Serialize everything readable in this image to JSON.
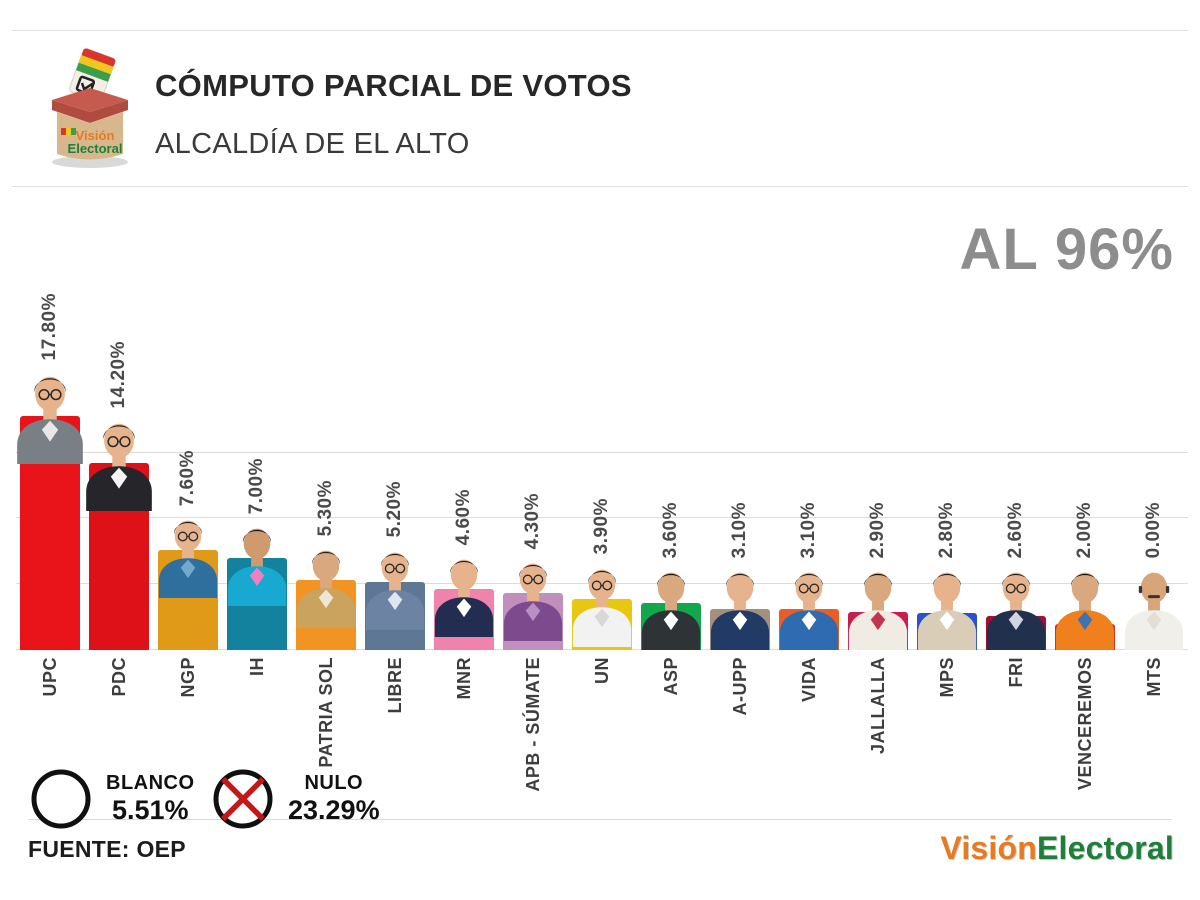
{
  "header": {
    "title": "CÓMPUTO PARCIAL DE VOTOS",
    "subtitle": "ALCALDÍA DE EL ALTO",
    "logo": {
      "icon": "ballot-box-icon",
      "line1": "Visión",
      "line2": "Electoral"
    }
  },
  "counted_label": "AL 96%",
  "chart_data": {
    "type": "bar",
    "title": "CÓMPUTO PARCIAL DE VOTOS - ALCALDÍA DE EL ALTO",
    "unit": "percent of valid votes",
    "ylim": [
      0,
      20
    ],
    "grid": true,
    "gridlines_percent": [
      0,
      5,
      10,
      15
    ],
    "categories": [
      "UPC",
      "PDC",
      "NGP",
      "IH",
      "PATRIA SOL",
      "LIBRE",
      "MNR",
      "APB - SÚMATE",
      "UN",
      "ASP",
      "A-UPP",
      "VIDA",
      "JALLALLA",
      "MPS",
      "FRI",
      "VENCEREMOS",
      "MTS"
    ],
    "values": [
      17.8,
      14.2,
      7.6,
      7.0,
      5.3,
      5.2,
      4.6,
      4.3,
      3.9,
      3.6,
      3.1,
      3.1,
      2.9,
      2.8,
      2.6,
      2.0,
      0.0
    ],
    "value_labels": [
      "17.80%",
      "14.20%",
      "7.60%",
      "7.00%",
      "5.30%",
      "5.20%",
      "4.60%",
      "4.30%",
      "3.90%",
      "3.60%",
      "3.10%",
      "3.10%",
      "2.90%",
      "2.80%",
      "2.60%",
      "2.00%",
      "0.00%"
    ],
    "bar_colors": [
      "#e8141a",
      "#dd1117",
      "#e09a17",
      "#13829f",
      "#f29422",
      "#5e7795",
      "#f083ab",
      "#c08fbc",
      "#e7c70f",
      "#12a74c",
      "#a5907e",
      "#ec5c24",
      "#cb1c4d",
      "#2b51c8",
      "#a80d33",
      "#d92a18",
      "#ffffff"
    ],
    "avatars": [
      {
        "skin": "#e7b38c",
        "hair": "#201d1c",
        "shirt": "#7a7f86",
        "collar": "#e8e8e8",
        "glasses": true,
        "bald": false
      },
      {
        "skin": "#e7b38c",
        "hair": "#201d1c",
        "shirt": "#26262a",
        "collar": "#f5f5f5",
        "glasses": true,
        "bald": false
      },
      {
        "skin": "#e7b38c",
        "hair": "#201d1c",
        "shirt": "#2e6f9e",
        "collar": "#74a9cc",
        "glasses": true,
        "bald": false
      },
      {
        "skin": "#cf9a6e",
        "hair": "#141211",
        "shirt": "#17a9cf",
        "collar": "#ef7fc0",
        "glasses": false,
        "bald": false
      },
      {
        "skin": "#d9a87e",
        "hair": "#201d1c",
        "shirt": "#caa35f",
        "collar": "#f0e6d8",
        "glasses": false,
        "bald": false
      },
      {
        "skin": "#e7b38c",
        "hair": "#201d1c",
        "shirt": "#6c83a3",
        "collar": "#dfe6ee",
        "glasses": true,
        "bald": false
      },
      {
        "skin": "#e7b38c",
        "hair": "#201d1c",
        "shirt": "#232d52",
        "collar": "#ffffff",
        "glasses": false,
        "bald": false
      },
      {
        "skin": "#e7b38c",
        "hair": "#201d1c",
        "shirt": "#7e4a8e",
        "collar": "#b98fc5",
        "glasses": true,
        "bald": false
      },
      {
        "skin": "#e7b38c",
        "hair": "#201d1c",
        "shirt": "#f2f2f2",
        "collar": "#d8d8d8",
        "glasses": true,
        "bald": false
      },
      {
        "skin": "#d9a87e",
        "hair": "#141211",
        "shirt": "#2e3436",
        "collar": "#ffffff",
        "glasses": false,
        "bald": false
      },
      {
        "skin": "#e7b38c",
        "hair": "#201d1c",
        "shirt": "#223a66",
        "collar": "#ffffff",
        "glasses": false,
        "bald": false
      },
      {
        "skin": "#e7b38c",
        "hair": "#201d1c",
        "shirt": "#2f6bb0",
        "collar": "#ffffff",
        "glasses": true,
        "bald": false
      },
      {
        "skin": "#d9a87e",
        "hair": "#141211",
        "shirt": "#f0ece4",
        "collar": "#c2354f",
        "glasses": false,
        "bald": false
      },
      {
        "skin": "#e7b38c",
        "hair": "#201d1c",
        "shirt": "#d9cdb8",
        "collar": "#ffffff",
        "glasses": false,
        "bald": false
      },
      {
        "skin": "#e7b38c",
        "hair": "#201d1c",
        "shirt": "#20304d",
        "collar": "#cfd6e2",
        "glasses": true,
        "bald": false
      },
      {
        "skin": "#d9a87e",
        "hair": "#141211",
        "shirt": "#f07f1e",
        "collar": "#3f72b5",
        "glasses": false,
        "bald": false
      },
      {
        "skin": "#d8a579",
        "hair": "#3a332e",
        "shirt": "#f1efe9",
        "collar": "#e2ded4",
        "glasses": false,
        "bald": true
      }
    ]
  },
  "legend": {
    "blanco": {
      "icon": "blanco-circle-icon",
      "label": "BLANCO",
      "value": "5.51%"
    },
    "nulo": {
      "icon": "nulo-cross-icon",
      "label": "NULO",
      "value": "23.29%"
    }
  },
  "footer": {
    "source": "FUENTE: OEP",
    "brand_part1": "Visión",
    "brand_part2": "Electoral",
    "brand_color1": "#e87a20",
    "brand_color2": "#1d7f3a"
  }
}
